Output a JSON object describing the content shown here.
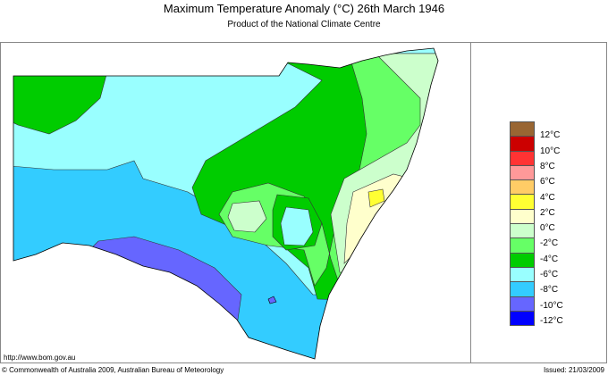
{
  "header": {
    "title": "Maximum Temperature Anomaly (°C)  26th March 1946",
    "subtitle": "Product of the National Climate Centre"
  },
  "legend": {
    "colors": [
      "#996633",
      "#cc0000",
      "#ff3333",
      "#ff9999",
      "#ffcc66",
      "#ffff33",
      "#ffffcc",
      "#ccffcc",
      "#66ff66",
      "#00cc00",
      "#99ffff",
      "#33ccff",
      "#6666ff",
      "#0000ff"
    ],
    "labels": [
      "12°C",
      "10°C",
      "8°C",
      "6°C",
      "4°C",
      "2°C",
      "0°C",
      "-2°C",
      "-4°C",
      "-6°C",
      "-8°C",
      "-10°C",
      "-12°C"
    ]
  },
  "footer": {
    "url": "http://www.bom.gov.au",
    "copyright": "© Commonwealth of Australia 2009, Australian Bureau of Meteorology",
    "issued": "Issued: 21/03/2009"
  }
}
